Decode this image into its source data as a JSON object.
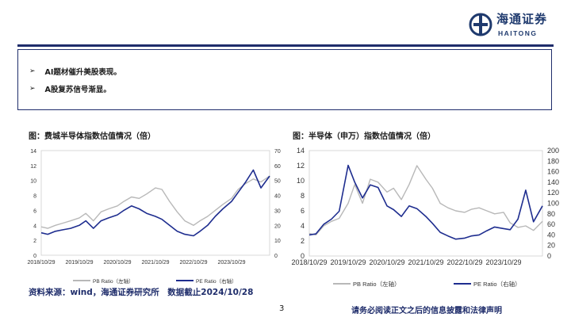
{
  "header": {
    "logo_cn": "海通证券",
    "logo_en": "HAITONG"
  },
  "summary": {
    "bullets": [
      "AI题材催升美股表现。",
      "A股复苏信号渐显。"
    ]
  },
  "footer": {
    "source": "资料来源：wind，海通证券研究所　数据截止2024/10/28",
    "page": "3",
    "disclaimer": "请务必阅读正文之后的信息披露和法律声明"
  },
  "colors": {
    "navy": "#1f2d6b",
    "pb_line": "#b8b8b8",
    "pe_line": "#1e2d8f"
  },
  "chart_data": [
    {
      "type": "line",
      "title": "图：费城半导体指数估值情况（倍）",
      "x_labels": [
        "2018/10/29",
        "2019/10/29",
        "2020/10/29",
        "2021/10/29",
        "2022/10/29",
        "2023/10/29"
      ],
      "x_range": [
        2018.83,
        2024.83
      ],
      "y_left": {
        "ticks": [
          "0",
          "2",
          "4",
          "6",
          "8",
          "10",
          "12",
          "14"
        ],
        "range": [
          0,
          14
        ]
      },
      "y_right": {
        "ticks": [
          "0",
          "10",
          "20",
          "30",
          "40",
          "50",
          "60",
          "70"
        ],
        "range": [
          0,
          70
        ]
      },
      "grid": false,
      "legend_position": "bottom",
      "series": [
        {
          "name": "PB Ratio（左轴）",
          "axis": "left",
          "color": "#b8b8b8",
          "x": [
            2018.83,
            2019.0,
            2019.2,
            2019.4,
            2019.6,
            2019.83,
            2020.0,
            2020.2,
            2020.4,
            2020.6,
            2020.83,
            2021.0,
            2021.2,
            2021.4,
            2021.6,
            2021.83,
            2022.0,
            2022.2,
            2022.4,
            2022.6,
            2022.83,
            2023.0,
            2023.2,
            2023.4,
            2023.6,
            2023.83,
            2024.0,
            2024.2,
            2024.4,
            2024.6,
            2024.83
          ],
          "y": [
            3.8,
            3.6,
            4.0,
            4.3,
            4.6,
            5.0,
            5.6,
            4.6,
            5.8,
            6.2,
            6.6,
            7.2,
            7.8,
            7.6,
            8.2,
            9.0,
            8.8,
            7.2,
            5.8,
            4.6,
            4.0,
            4.6,
            5.2,
            6.0,
            6.8,
            7.6,
            8.8,
            9.6,
            10.2,
            9.8,
            10.6
          ]
        },
        {
          "name": "PE Ratio（右轴）",
          "axis": "right",
          "color": "#1e2d8f",
          "x": [
            2018.83,
            2019.0,
            2019.2,
            2019.4,
            2019.6,
            2019.83,
            2020.0,
            2020.2,
            2020.4,
            2020.6,
            2020.83,
            2021.0,
            2021.2,
            2021.4,
            2021.6,
            2021.83,
            2022.0,
            2022.2,
            2022.4,
            2022.6,
            2022.83,
            2023.0,
            2023.2,
            2023.4,
            2023.6,
            2023.83,
            2024.0,
            2024.2,
            2024.4,
            2024.6,
            2024.83
          ],
          "y": [
            15,
            14,
            16,
            17,
            18,
            20,
            23,
            18,
            23,
            25,
            27,
            30,
            33,
            31,
            28,
            26,
            24,
            20,
            16,
            14,
            13,
            16,
            20,
            26,
            31,
            36,
            42,
            49,
            57,
            45,
            53
          ]
        }
      ]
    },
    {
      "type": "line",
      "title": "图：半导体（申万）指数估值情况（倍）",
      "x_labels": [
        "2018/10/29",
        "2019/10/29",
        "2020/10/29",
        "2021/10/29",
        "2022/10/29",
        "2023/10/29"
      ],
      "x_range": [
        2018.83,
        2024.83
      ],
      "y_left": {
        "ticks": [
          "0",
          "2",
          "4",
          "6",
          "8",
          "10",
          "12",
          "14"
        ],
        "range": [
          0,
          14
        ]
      },
      "y_right": {
        "ticks": [
          "0",
          "20",
          "40",
          "60",
          "80",
          "100",
          "120",
          "140",
          "160",
          "180",
          "200"
        ],
        "range": [
          0,
          200
        ]
      },
      "grid": false,
      "legend_position": "bottom",
      "series": [
        {
          "name": "PB Ratio（左轴）",
          "axis": "left",
          "color": "#b8b8b8",
          "x": [
            2018.83,
            2019.0,
            2019.2,
            2019.4,
            2019.6,
            2019.83,
            2020.0,
            2020.2,
            2020.4,
            2020.6,
            2020.83,
            2021.0,
            2021.2,
            2021.4,
            2021.6,
            2021.83,
            2022.0,
            2022.2,
            2022.4,
            2022.6,
            2022.83,
            2023.0,
            2023.2,
            2023.4,
            2023.6,
            2023.83,
            2024.0,
            2024.2,
            2024.4,
            2024.6,
            2024.83
          ],
          "y": [
            3.0,
            2.8,
            4.0,
            4.6,
            5.0,
            7.0,
            9.5,
            7.0,
            10.2,
            9.8,
            8.5,
            9.0,
            7.5,
            9.5,
            12.0,
            10.2,
            9.0,
            7.0,
            6.4,
            6.0,
            5.8,
            6.2,
            6.4,
            6.0,
            5.6,
            5.8,
            4.4,
            3.8,
            4.0,
            3.4,
            4.6
          ]
        },
        {
          "name": "PE Ratio（右轴）",
          "axis": "right",
          "color": "#1e2d8f",
          "x": [
            2018.83,
            2019.0,
            2019.2,
            2019.4,
            2019.6,
            2019.83,
            2020.0,
            2020.2,
            2020.4,
            2020.6,
            2020.83,
            2021.0,
            2021.2,
            2021.4,
            2021.6,
            2021.83,
            2022.0,
            2022.2,
            2022.4,
            2022.6,
            2022.83,
            2023.0,
            2023.2,
            2023.4,
            2023.6,
            2023.83,
            2024.0,
            2024.2,
            2024.4,
            2024.6,
            2024.83
          ],
          "y": [
            40,
            42,
            60,
            70,
            85,
            172,
            140,
            110,
            135,
            130,
            95,
            88,
            75,
            95,
            90,
            75,
            62,
            45,
            38,
            32,
            34,
            38,
            40,
            48,
            55,
            52,
            50,
            70,
            125,
            65,
            95
          ]
        }
      ]
    }
  ]
}
